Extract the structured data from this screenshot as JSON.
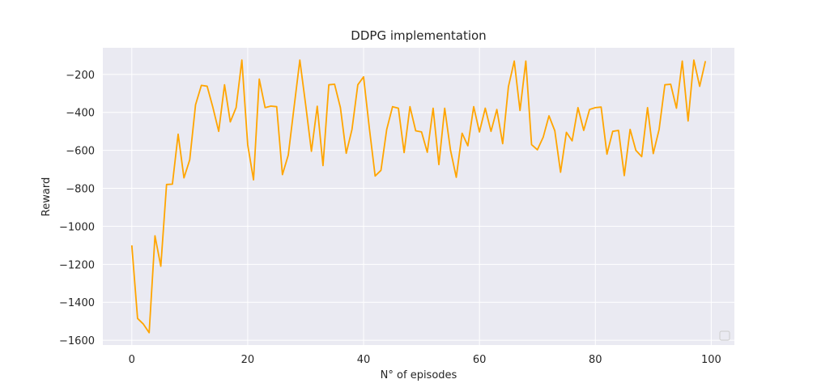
{
  "chart_data": {
    "type": "line",
    "title": "DDPG implementation",
    "xlabel": "N° of episodes",
    "ylabel": "Reward",
    "xlim": [
      -5,
      104
    ],
    "ylim": [
      -1625,
      -60
    ],
    "x_ticks": [
      0,
      20,
      40,
      60,
      80,
      100
    ],
    "y_ticks": [
      -1600,
      -1400,
      -1200,
      -1000,
      -800,
      -600,
      -400,
      -200
    ],
    "grid": true,
    "legend_placement": "lower right",
    "line_color": "#FFA500",
    "background_color": "#EAEAF2",
    "series": [
      {
        "x": [
          0,
          1,
          2,
          3,
          4,
          5,
          6,
          7,
          8,
          9,
          10,
          11,
          12,
          13,
          14,
          15,
          16,
          17,
          18,
          19,
          20,
          21,
          22,
          23,
          24,
          25,
          26,
          27,
          28,
          29,
          30,
          31,
          32,
          33,
          34,
          35,
          36,
          37,
          38,
          39,
          40,
          41,
          42,
          43,
          44,
          45,
          46,
          47,
          48,
          49,
          50,
          51,
          52,
          53,
          54,
          55,
          56,
          57,
          58,
          59,
          60,
          61,
          62,
          63,
          64,
          65,
          66,
          67,
          68,
          69,
          70,
          71,
          72,
          73,
          74,
          75,
          76,
          77,
          78,
          79,
          80,
          81,
          82,
          83,
          84,
          85,
          86,
          87,
          88,
          89,
          90,
          91,
          92,
          93,
          94,
          95,
          96,
          97,
          98,
          99
        ],
        "values": [
          -1100,
          -1485,
          -1515,
          -1560,
          -1050,
          -1210,
          -780,
          -778,
          -515,
          -745,
          -650,
          -360,
          -258,
          -262,
          -375,
          -500,
          -255,
          -450,
          -375,
          -125,
          -570,
          -755,
          -225,
          -375,
          -367,
          -370,
          -728,
          -625,
          -375,
          -125,
          -360,
          -605,
          -368,
          -680,
          -255,
          -252,
          -375,
          -615,
          -490,
          -255,
          -213,
          -485,
          -735,
          -705,
          -490,
          -370,
          -378,
          -612,
          -370,
          -497,
          -503,
          -610,
          -378,
          -675,
          -378,
          -600,
          -742,
          -510,
          -576,
          -370,
          -503,
          -378,
          -500,
          -385,
          -565,
          -265,
          -130,
          -390,
          -130,
          -570,
          -597,
          -530,
          -418,
          -497,
          -715,
          -505,
          -550,
          -375,
          -495,
          -385,
          -375,
          -372,
          -620,
          -500,
          -495,
          -733,
          -490,
          -600,
          -633,
          -375,
          -617,
          -490,
          -255,
          -252,
          -378,
          -130,
          -445,
          -125,
          -263,
          -130
        ]
      }
    ]
  }
}
